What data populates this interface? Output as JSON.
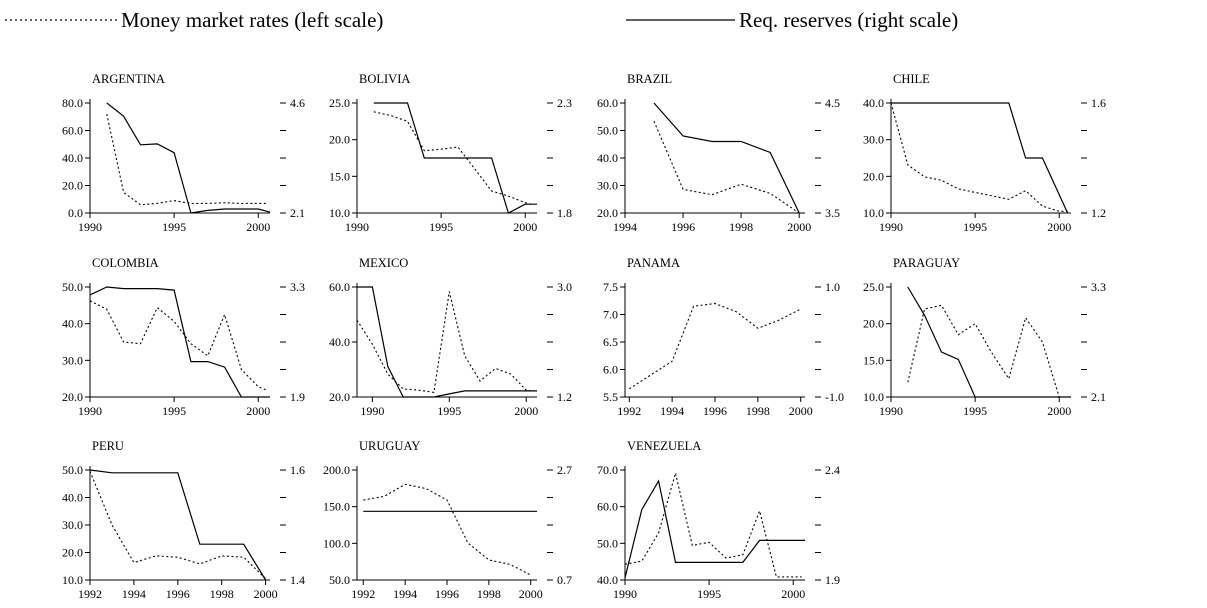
{
  "legend": {
    "money_label": "Money market rates (left scale)",
    "reserves_label": "Req. reserves (right scale)"
  },
  "chart_data": [
    {
      "type": "line",
      "title": "ARGENTINA",
      "x_ticks": [
        "1990",
        "1995",
        "2000"
      ],
      "left_ticks": [
        "80.0",
        "60.0",
        "40.0",
        "20.0",
        "0.0"
      ],
      "right_ticks": [
        "4.6",
        "",
        "",
        "",
        "2.1"
      ],
      "xlim": [
        1990,
        2000.7
      ],
      "ylim_left": [
        0,
        80
      ],
      "ylim_right": [
        2.1,
        4.6
      ],
      "series": [
        {
          "name": "Money market rates (left scale)",
          "axis": "left",
          "style": "dotted",
          "x": [
            1991,
            1992,
            1993,
            1994,
            1995,
            1996,
            1997,
            1998,
            1999,
            2000.5
          ],
          "y": [
            72,
            15,
            6,
            7,
            9,
            7,
            7,
            7.5,
            7,
            7
          ]
        },
        {
          "name": "Req. reserves (right scale)",
          "axis": "right",
          "style": "solid",
          "x": [
            1991,
            1992,
            1993,
            1994,
            1995,
            1996,
            1997,
            1998,
            1999,
            2000,
            2000.7
          ],
          "y": [
            4.6,
            4.3,
            3.65,
            3.67,
            3.47,
            2.1,
            2.16,
            2.19,
            2.19,
            2.19,
            2.12
          ]
        }
      ]
    },
    {
      "type": "line",
      "title": "BOLIVIA",
      "x_ticks": [
        "1990",
        "1995",
        "2000"
      ],
      "left_ticks": [
        "25.0",
        "20.0",
        "15.0",
        "10.0"
      ],
      "right_ticks": [
        "2.3",
        "",
        "",
        "",
        "1.8"
      ],
      "xlim": [
        1990,
        2000.7
      ],
      "ylim_left": [
        10,
        25
      ],
      "ylim_right": [
        1.8,
        2.3
      ],
      "series": [
        {
          "name": "Money market rates (left scale)",
          "axis": "left",
          "style": "dotted",
          "x": [
            1991,
            1992,
            1993,
            1994,
            1995,
            1996,
            1997,
            1998,
            1999,
            2000,
            2000.5
          ],
          "y": [
            23.8,
            23.3,
            22.5,
            18.5,
            18.7,
            19,
            16,
            13,
            12.3,
            11.4,
            11.1
          ]
        },
        {
          "name": "Req. reserves (right scale)",
          "axis": "right",
          "style": "solid",
          "x": [
            1991,
            1993,
            1994,
            1997,
            1998,
            1999,
            2000,
            2000.7
          ],
          "y": [
            2.3,
            2.3,
            2.05,
            2.05,
            2.05,
            1.8,
            1.84,
            1.84
          ]
        }
      ]
    },
    {
      "type": "line",
      "title": "BRAZIL",
      "x_ticks": [
        "1994",
        "1996",
        "1998",
        "2000"
      ],
      "left_ticks": [
        "60.0",
        "50.0",
        "40.0",
        "30.0",
        "20.0"
      ],
      "right_ticks": [
        "4.5",
        "",
        "",
        "",
        "3.5"
      ],
      "xlim": [
        1994,
        2000.2
      ],
      "ylim_left": [
        18,
        60
      ],
      "ylim_right": [
        3.5,
        4.5
      ],
      "series": [
        {
          "name": "Money market rates (left scale)",
          "axis": "left",
          "style": "dotted",
          "x": [
            1995,
            1996,
            1997,
            1998,
            1999,
            2000
          ],
          "y": [
            53,
            27,
            25,
            29,
            25.5,
            18
          ]
        },
        {
          "name": "Req. reserves (right scale)",
          "axis": "right",
          "style": "solid",
          "x": [
            1995,
            1996,
            1997,
            1998,
            1999,
            2000
          ],
          "y": [
            4.5,
            4.2,
            4.15,
            4.15,
            4.05,
            3.5
          ]
        }
      ]
    },
    {
      "type": "line",
      "title": "CHILE",
      "x_ticks": [
        "1990",
        "1995",
        "2000"
      ],
      "left_ticks": [
        "40.0",
        "30.0",
        "20.0",
        "10.0"
      ],
      "right_ticks": [
        "1.6",
        "",
        "",
        "",
        "1.2"
      ],
      "xlim": [
        1990,
        2000.7
      ],
      "ylim_left": [
        8,
        40
      ],
      "ylim_right": [
        1.2,
        1.6
      ],
      "series": [
        {
          "name": "Money market rates (left scale)",
          "axis": "left",
          "style": "dotted",
          "x": [
            1990,
            1991,
            1992,
            1993,
            1994,
            1995,
            1996,
            1997,
            1998,
            1999,
            2000,
            2000.5
          ],
          "y": [
            40,
            22,
            18.5,
            17.5,
            15,
            14,
            13,
            12,
            14.5,
            10,
            8.5,
            8.5
          ]
        },
        {
          "name": "Req. reserves (right scale)",
          "axis": "right",
          "style": "solid",
          "x": [
            1990,
            1997,
            1998,
            1999,
            2000.5
          ],
          "y": [
            1.6,
            1.6,
            1.4,
            1.4,
            1.2
          ]
        }
      ]
    },
    {
      "type": "line",
      "title": "COLOMBIA",
      "x_ticks": [
        "1990",
        "1995",
        "2000"
      ],
      "left_ticks": [
        "50.0",
        "40.0",
        "30.0",
        "20.0"
      ],
      "right_ticks": [
        "3.3",
        "",
        "",
        "",
        "1.9"
      ],
      "xlim": [
        1990,
        2000.7
      ],
      "ylim_left": [
        18,
        50
      ],
      "ylim_right": [
        1.9,
        3.3
      ],
      "series": [
        {
          "name": "Money market rates (left scale)",
          "axis": "left",
          "style": "dotted",
          "x": [
            1990,
            1991,
            1992,
            1993,
            1994,
            1995,
            1996,
            1997,
            1998,
            1999,
            2000,
            2000.5
          ],
          "y": [
            46,
            43.5,
            34,
            33.5,
            44,
            40,
            33.5,
            30,
            42,
            26,
            21,
            20
          ]
        },
        {
          "name": "Req. reserves (right scale)",
          "axis": "right",
          "style": "solid",
          "x": [
            1990,
            1991,
            1992,
            1994,
            1995,
            1996,
            1997,
            1998,
            1999,
            2000,
            2000.7
          ],
          "y": [
            3.2,
            3.3,
            3.28,
            3.28,
            3.26,
            2.35,
            2.35,
            2.28,
            1.9,
            1.9,
            1.9
          ]
        }
      ]
    },
    {
      "type": "line",
      "title": "MEXICO",
      "x_ticks": [
        "1990",
        "1995",
        "2000"
      ],
      "left_ticks": [
        "60.0",
        "40.0",
        "20.0"
      ],
      "right_ticks": [
        "3.0",
        "",
        "",
        "",
        "1.2"
      ],
      "xlim": [
        1989,
        2000.7
      ],
      "ylim_left": [
        14,
        62
      ],
      "ylim_right": [
        1.2,
        3.0
      ],
      "series": [
        {
          "name": "Money market rates (left scale)",
          "axis": "left",
          "style": "dotted",
          "x": [
            1989,
            1990,
            1991,
            1992,
            1993,
            1994,
            1995,
            1996,
            1997,
            1998,
            1999,
            2000,
            2000.5
          ],
          "y": [
            47.5,
            37,
            24,
            17.5,
            17,
            16,
            60,
            32,
            21,
            26.5,
            24,
            17,
            16.5
          ]
        },
        {
          "name": "Req. reserves (right scale)",
          "axis": "right",
          "style": "solid",
          "x": [
            1989,
            1990,
            1991,
            1992,
            1993,
            1994,
            1995,
            1996,
            1997,
            1998,
            1999,
            2000,
            2000.7
          ],
          "y": [
            3.0,
            3.0,
            1.7,
            1.2,
            1.2,
            1.2,
            1.25,
            1.3,
            1.3,
            1.3,
            1.3,
            1.3,
            1.3
          ]
        }
      ]
    },
    {
      "type": "line",
      "title": "PANAMA",
      "x_ticks": [
        "1992",
        "1994",
        "1996",
        "1998",
        "2000"
      ],
      "left_ticks": [
        "7.5",
        "7.0",
        "6.5",
        "6.0",
        "5.5"
      ],
      "right_ticks": [
        "1.0",
        "",
        "",
        "",
        "-1.0"
      ],
      "xlim": [
        1991.8,
        2000.2
      ],
      "ylim_left": [
        5.5,
        7.5
      ],
      "ylim_right": [
        -1.0,
        1.0
      ],
      "series": [
        {
          "name": "Money market rates (left scale)",
          "axis": "left",
          "style": "dotted",
          "x": [
            1992,
            1993,
            1994,
            1995,
            1996,
            1997,
            1998,
            1999,
            2000
          ],
          "y": [
            5.65,
            5.9,
            6.15,
            7.15,
            7.2,
            7.05,
            6.75,
            6.9,
            7.1
          ]
        }
      ]
    },
    {
      "type": "line",
      "title": "PARAGUAY",
      "x_ticks": [
        "1990",
        "1995",
        "2000"
      ],
      "left_ticks": [
        "25.0",
        "20.0",
        "15.0",
        "10.0"
      ],
      "right_ticks": [
        "3.3",
        "",
        "",
        "",
        "2.1"
      ],
      "xlim": [
        1990,
        2000.7
      ],
      "ylim_left": [
        10,
        25
      ],
      "ylim_right": [
        2.1,
        3.3
      ],
      "series": [
        {
          "name": "Money market rates (left scale)",
          "axis": "left",
          "style": "dotted",
          "x": [
            1991,
            1992,
            1993,
            1994,
            1995,
            1996,
            1997,
            1998,
            1999,
            2000
          ],
          "y": [
            12,
            22,
            22.5,
            18.5,
            20,
            16,
            12.5,
            20.8,
            17.5,
            10
          ]
        },
        {
          "name": "Req. reserves (right scale)",
          "axis": "right",
          "style": "solid",
          "x": [
            1991,
            1992,
            1993,
            1994,
            1995,
            1996,
            1997,
            1998,
            1999,
            2000,
            2000.7
          ],
          "y": [
            3.3,
            2.99,
            2.59,
            2.51,
            2.1,
            2.1,
            2.1,
            2.1,
            2.1,
            2.1,
            2.1
          ]
        }
      ]
    },
    {
      "type": "line",
      "title": "PERU",
      "x_ticks": [
        "1992",
        "1994",
        "1996",
        "1998",
        "2000"
      ],
      "left_ticks": [
        "50.0",
        "40.0",
        "30.0",
        "20.0",
        "10.0"
      ],
      "right_ticks": [
        "1.6",
        "",
        "",
        "",
        "1.4"
      ],
      "xlim": [
        1992,
        2000.2
      ],
      "ylim_left": [
        9.5,
        50.5
      ],
      "ylim_right": [
        1.4,
        1.6
      ],
      "series": [
        {
          "name": "Money market rates (left scale)",
          "axis": "left",
          "style": "dotted",
          "x": [
            1992,
            1993,
            1994,
            1995,
            1996,
            1997,
            1998,
            1999,
            2000
          ],
          "y": [
            50,
            30,
            16,
            18.5,
            18,
            15.5,
            18.5,
            18,
            10
          ]
        },
        {
          "name": "Req. reserves (right scale)",
          "axis": "right",
          "style": "solid",
          "x": [
            1992,
            1993,
            1996,
            1997,
            1999,
            2000
          ],
          "y": [
            1.6,
            1.595,
            1.595,
            1.465,
            1.465,
            1.4
          ]
        }
      ]
    },
    {
      "type": "line",
      "title": "URUGUAY",
      "x_ticks": [
        "1992",
        "1994",
        "1996",
        "1998",
        "2000"
      ],
      "left_ticks": [
        "200.0",
        "150.0",
        "100.0",
        "50.0"
      ],
      "right_ticks": [
        "2.7",
        "",
        "",
        "",
        "0.7"
      ],
      "xlim": [
        1991.7,
        2000.3
      ],
      "ylim_left": [
        48,
        202
      ],
      "ylim_right": [
        0.7,
        2.7
      ],
      "series": [
        {
          "name": "Money market rates (left scale)",
          "axis": "left",
          "style": "dotted",
          "x": [
            1992,
            1993,
            1994,
            1995,
            1996,
            1997,
            1998,
            1999,
            2000
          ],
          "y": [
            160,
            165,
            182,
            176,
            160,
            100,
            76,
            70,
            55
          ]
        },
        {
          "name": "Req. reserves (right scale)",
          "axis": "right",
          "style": "solid",
          "x": [
            1992,
            2000.3
          ],
          "y": [
            1.95,
            1.95
          ]
        }
      ]
    },
    {
      "type": "line",
      "title": "VENEZUELA",
      "x_ticks": [
        "1990",
        "1995",
        "2000"
      ],
      "left_ticks": [
        "70.0",
        "60.0",
        "50.0",
        "40.0"
      ],
      "right_ticks": [
        "2.4",
        "",
        "",
        "",
        "1.9"
      ],
      "xlim": [
        1990,
        2000.7
      ],
      "ylim_left": [
        37,
        72
      ],
      "ylim_right": [
        1.9,
        2.4
      ],
      "series": [
        {
          "name": "Money market rates (left scale)",
          "axis": "left",
          "style": "dotted",
          "x": [
            1990,
            1991,
            1992,
            1993,
            1994,
            1995,
            1996,
            1997,
            1998,
            1999,
            2000,
            2000.5
          ],
          "y": [
            42,
            43,
            52,
            71,
            48,
            49,
            44,
            45,
            59,
            38,
            38,
            38
          ]
        },
        {
          "name": "Req. reserves (right scale)",
          "axis": "right",
          "style": "solid",
          "x": [
            1990,
            1991,
            1992,
            1993,
            1994,
            1995,
            1996,
            1997,
            1998,
            1999,
            2000,
            2000.7
          ],
          "y": [
            1.91,
            2.22,
            2.35,
            1.98,
            1.98,
            1.98,
            1.98,
            1.98,
            2.08,
            2.08,
            2.08,
            2.08
          ]
        }
      ]
    }
  ]
}
